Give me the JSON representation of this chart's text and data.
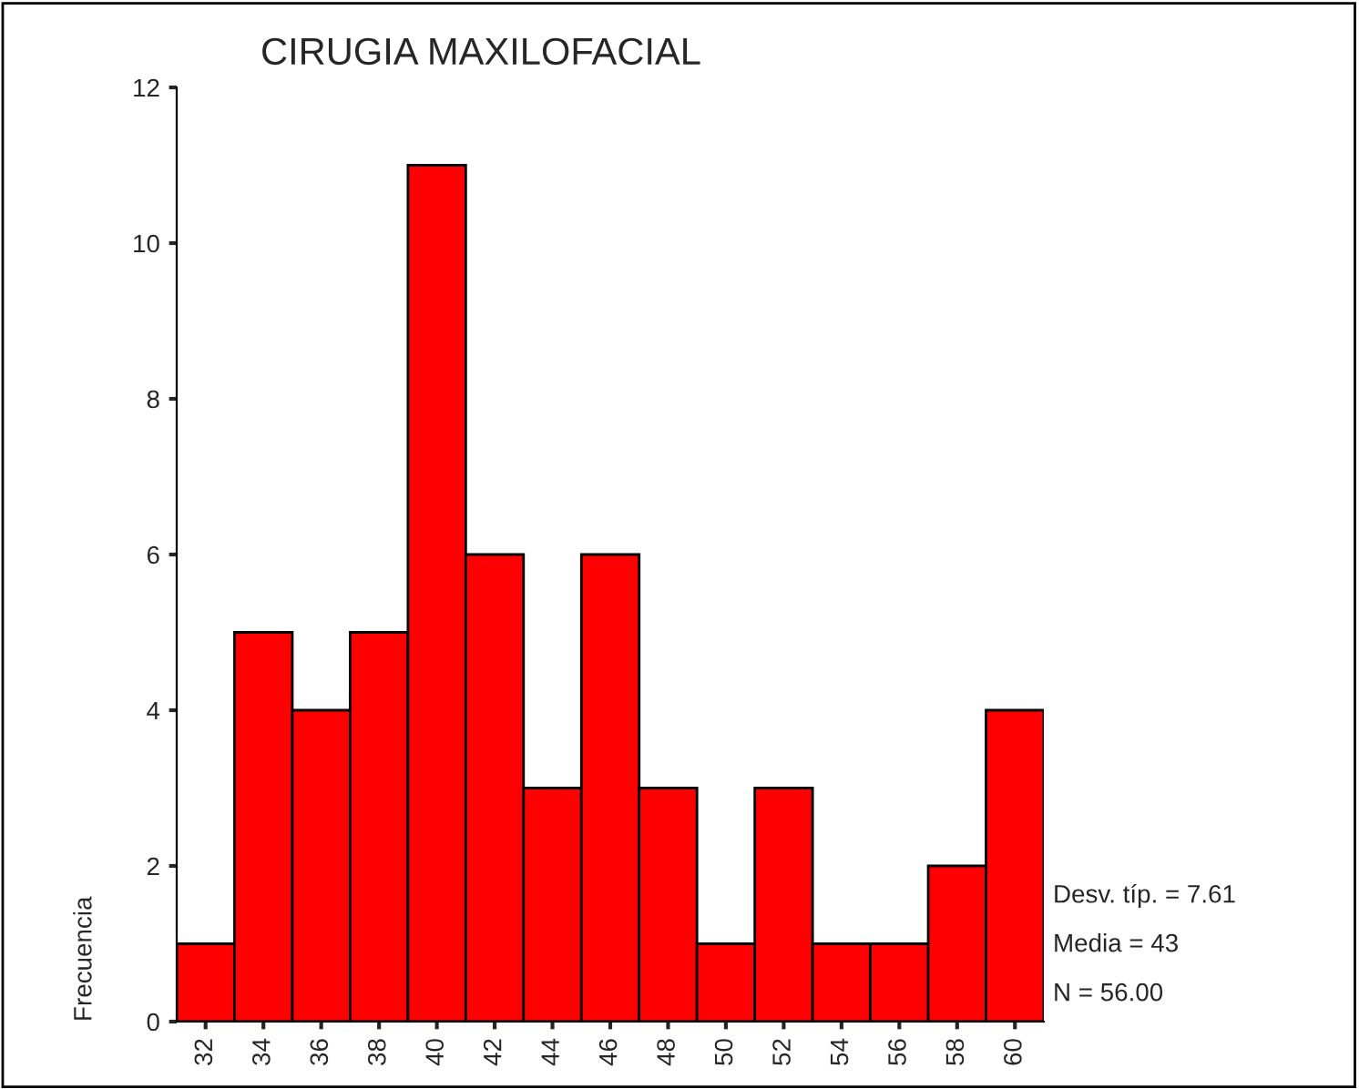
{
  "chart_data": {
    "type": "histogram",
    "title": "CIRUGIA MAXILOFACIAL",
    "ylabel": "Frecuencia",
    "bins": [
      31,
      33,
      35,
      37,
      39,
      41,
      43,
      45,
      47,
      49,
      51,
      53,
      55,
      57,
      59,
      61
    ],
    "values": [
      1,
      5,
      4,
      5,
      11,
      6,
      3,
      6,
      3,
      1,
      3,
      1,
      1,
      2,
      4
    ],
    "color": "#ff0000",
    "xlim": [
      31,
      61
    ],
    "xticks": [
      32,
      34,
      36,
      38,
      40,
      42,
      44,
      46,
      48,
      50,
      52,
      54,
      56,
      58,
      60
    ],
    "ylim": [
      0,
      12
    ],
    "yticks": [
      0,
      2,
      4,
      6,
      8,
      10,
      12
    ],
    "grid": false,
    "annotations": [
      "Desv. típ. = 7.61",
      "Media = 43",
      "N = 56.00"
    ]
  }
}
